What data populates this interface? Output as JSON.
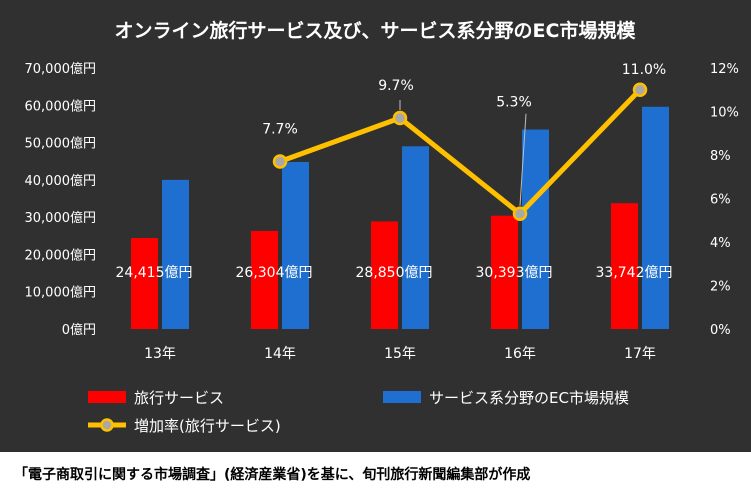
{
  "title": "オンライン旅行サービス及び、サービス系分野のEC市場規模",
  "source": "「電子商取引に関する市場調査」(経済産業省)を基に、旬刊旅行新聞編集部が作成",
  "colors": {
    "background": "#303030",
    "travel": "#ff0000",
    "service": "#1f6fd1",
    "growth": "#ffc000",
    "growth_marker": "#a8a8a8"
  },
  "chart_data": {
    "type": "bar",
    "title": "オンライン旅行サービス及び、サービス系分野のEC市場規模",
    "categories": [
      "13年",
      "14年",
      "15年",
      "16年",
      "17年"
    ],
    "series": [
      {
        "name": "旅行サービス",
        "type": "bar",
        "axis": "left",
        "values": [
          24415,
          26304,
          28850,
          30393,
          33742
        ],
        "labels": [
          "24,415億円",
          "26,304億円",
          "28,850億円",
          "30,393億円",
          "33,742億円"
        ]
      },
      {
        "name": "サービス系分野のEC市場規模",
        "type": "bar",
        "axis": "left",
        "values": [
          40000,
          44800,
          49000,
          53500,
          59600
        ]
      },
      {
        "name": "増加率(旅行サービス)",
        "type": "line",
        "axis": "right",
        "values": [
          null,
          7.7,
          9.7,
          5.3,
          11.0
        ],
        "labels": [
          "",
          "7.7%",
          "9.7%",
          "5.3%",
          "11.0%"
        ]
      }
    ],
    "y_left": {
      "min": 0,
      "max": 70000,
      "ticks": [
        "0億円",
        "10,000億円",
        "20,000億円",
        "30,000億円",
        "40,000億円",
        "50,000億円",
        "60,000億円",
        "70,000億円"
      ]
    },
    "y_right": {
      "min": 0,
      "max": 12,
      "ticks": [
        "0%",
        "2%",
        "4%",
        "6%",
        "8%",
        "10%",
        "12%"
      ]
    },
    "grid": false,
    "legend_position": "bottom"
  }
}
